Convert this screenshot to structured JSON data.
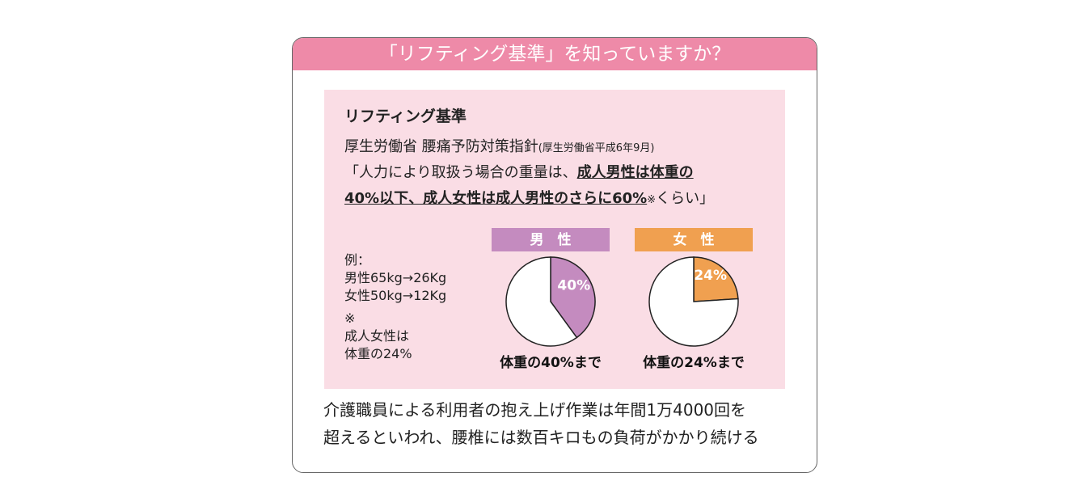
{
  "header": {
    "title": "「リフティング基準」を知っていますか？"
  },
  "box": {
    "heading": "リフティング基準",
    "source": "厚生労働省 腰痛予防対策指針",
    "source_note": "(厚生労働省平成6年9月)",
    "rule_start": "「人力により取扱う場合の重量は、",
    "rule_bold_1": "成人男性は体重の",
    "rule_bold_2": "40%以下、成人女性は成人男性のさらに60%",
    "rule_mark": "※",
    "rule_end": "くらい」",
    "notes": [
      "例：",
      "男性65kg→26Kg",
      "女性50kg→12Kg",
      "※",
      "成人女性は",
      "体重の24%"
    ]
  },
  "footer": [
    "介護職員による利用者の抱え上げ作業は年間1万4000回を",
    "超えるといわれ、腰椎には数百キロもの負荷がかかり続ける"
  ],
  "chart_data": [
    {
      "type": "pie",
      "title": "男　性",
      "header_color": "#c48bbf",
      "categories": [
        null,
        null
      ],
      "values": [
        40,
        60
      ],
      "value_labels": [
        "40%",
        null
      ],
      "colors": [
        "#c48bbf",
        "#ffffff"
      ],
      "caption": "体重の40%まで"
    },
    {
      "type": "pie",
      "title": "女　性",
      "header_color": "#f0a050",
      "categories": [
        null,
        null
      ],
      "values": [
        24,
        76
      ],
      "value_labels": [
        "24%",
        null
      ],
      "colors": [
        "#f0a050",
        "#ffffff"
      ],
      "caption": "体重の24%まで"
    }
  ]
}
